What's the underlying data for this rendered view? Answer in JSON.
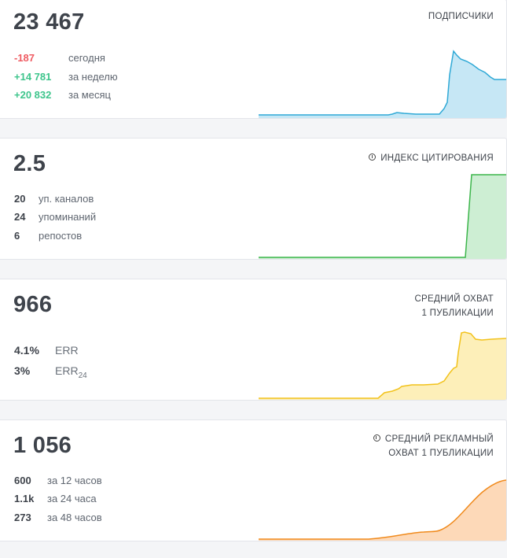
{
  "cards": [
    {
      "value": "23 467",
      "label": "ПОДПИСЧИКИ",
      "rows": [
        {
          "value": "-187",
          "desc": "сегодня"
        },
        {
          "value": "+14 781",
          "desc": "за неделю"
        },
        {
          "value": "+20 832",
          "desc": "за месяц"
        }
      ],
      "color": "#2fa9d6",
      "fill": "#c6e7f5"
    },
    {
      "value": "2.5",
      "label": "ИНДЕКС ЦИТИРОВАНИЯ",
      "info_icon": "question-circle-icon",
      "rows": [
        {
          "value": "20",
          "desc": "уп. каналов"
        },
        {
          "value": "24",
          "desc": "упоминаний"
        },
        {
          "value": "6",
          "desc": "репостов"
        }
      ],
      "color": "#3bb54a",
      "fill": "#cdeed3"
    },
    {
      "value": "966",
      "label_line1": "СРЕДНИЙ ОХВАТ",
      "label_line2": "1 ПУБЛИКАЦИИ",
      "rows": [
        {
          "value": "4.1%",
          "desc": "ERR"
        },
        {
          "value": "3%",
          "desc": "ERR",
          "sub": "24"
        }
      ],
      "color": "#f2c21b",
      "fill": "#fdefb9"
    },
    {
      "value": "1 056",
      "label_line1": "СРЕДНИЙ РЕКЛАМНЫЙ",
      "label_line2": "ОХВАТ 1 ПУБЛИКАЦИИ",
      "info_icon": "question-circle-icon",
      "rows": [
        {
          "value": "600",
          "desc": "за 12 часов"
        },
        {
          "value": "1.1k",
          "desc": "за 24 часа"
        },
        {
          "value": "273",
          "desc": "за 48 часов"
        }
      ],
      "color": "#f08a1c",
      "fill": "#fdd9b8"
    }
  ]
}
